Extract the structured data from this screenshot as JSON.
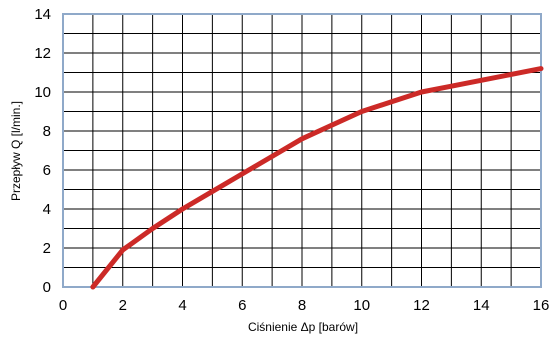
{
  "chart_data": {
    "type": "line",
    "xlabel": "Ciśnienie Δp [barów]",
    "ylabel": "Przepływ Q [l/min.]",
    "xlim": [
      0,
      16
    ],
    "ylim": [
      0,
      14
    ],
    "x_ticks": [
      0,
      2,
      4,
      6,
      8,
      10,
      12,
      14,
      16
    ],
    "y_ticks": [
      0,
      2,
      4,
      6,
      8,
      10,
      12,
      14
    ],
    "grid": true,
    "grid_minor_x_step": 1,
    "grid_minor_y_step": 1,
    "colors": {
      "line": "#cc2a27",
      "grid": "#000000",
      "frame": "#8fa9c9"
    },
    "series": [
      {
        "x": [
          1,
          2,
          3,
          4,
          5,
          6,
          7,
          8,
          9,
          10,
          11,
          12,
          13,
          14,
          15,
          16
        ],
        "y": [
          0,
          1.9,
          3.0,
          4.0,
          4.9,
          5.8,
          6.7,
          7.6,
          8.3,
          9.0,
          9.5,
          10.0,
          10.3,
          10.6,
          10.9,
          11.2
        ]
      }
    ]
  }
}
